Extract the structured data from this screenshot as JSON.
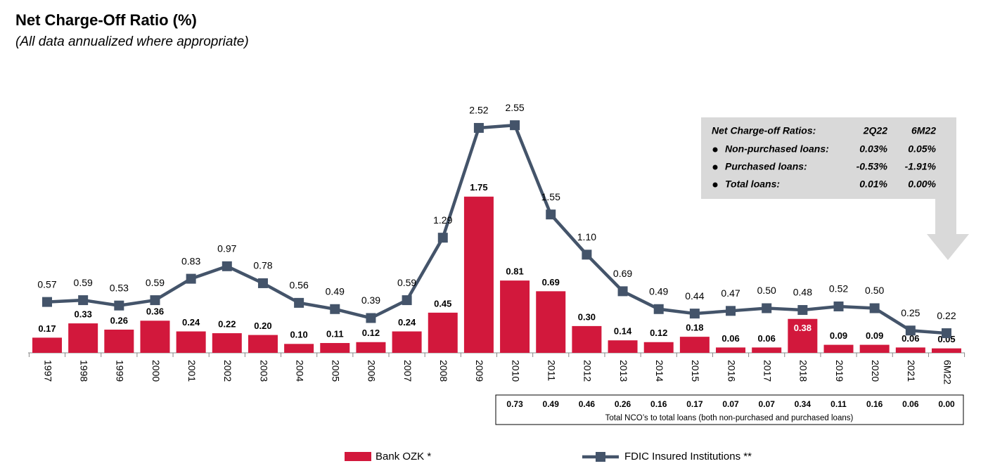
{
  "chart_data": {
    "type": "bar-line",
    "title": "Net Charge-Off Ratio (%)",
    "subtitle": "(All data annualized where appropriate)",
    "categories": [
      "1997",
      "1998",
      "1999",
      "2000",
      "2001",
      "2002",
      "2003",
      "2004",
      "2005",
      "2006",
      "2007",
      "2008",
      "2009",
      "2010",
      "2011",
      "2012",
      "2013",
      "2014",
      "2015",
      "2016",
      "2017",
      "2018",
      "2019",
      "2020",
      "2021",
      "6M22"
    ],
    "series": [
      {
        "name": "Bank OZK *",
        "type": "bar",
        "color": "#d2183c",
        "values": [
          0.17,
          0.33,
          0.26,
          0.36,
          0.24,
          0.22,
          0.2,
          0.1,
          0.11,
          0.12,
          0.24,
          0.45,
          1.75,
          0.81,
          0.69,
          0.3,
          0.14,
          0.12,
          0.18,
          0.06,
          0.06,
          0.38,
          0.09,
          0.09,
          0.06,
          0.05
        ],
        "value_labels": [
          "0.17",
          "0.33",
          "0.26",
          "0.36",
          "0.24",
          "0.22",
          "0.20",
          "0.10",
          "0.11",
          "0.12",
          "0.24",
          "0.45",
          "1.75",
          "0.81",
          "0.69",
          "0.30",
          "0.14",
          "0.12",
          "0.18",
          "0.06",
          "0.06",
          "0.38",
          "0.09",
          "0.09",
          "0.06",
          "0.05"
        ]
      },
      {
        "name": "FDIC Insured Institutions **",
        "type": "line",
        "color": "#44546a",
        "values": [
          0.57,
          0.59,
          0.53,
          0.59,
          0.83,
          0.97,
          0.78,
          0.56,
          0.49,
          0.39,
          0.59,
          1.29,
          2.52,
          2.55,
          1.55,
          1.1,
          0.69,
          0.49,
          0.44,
          0.47,
          0.5,
          0.48,
          0.52,
          0.5,
          0.25,
          0.22
        ],
        "value_labels": [
          "0.57",
          "0.59",
          "0.53",
          "0.59",
          "0.83",
          "0.97",
          "0.78",
          "0.56",
          "0.49",
          "0.39",
          "0.59",
          "1.29",
          "2.52",
          "2.55",
          "1.55",
          "1.10",
          "0.69",
          "0.49",
          "0.44",
          "0.47",
          "0.50",
          "0.48",
          "0.52",
          "0.50",
          "0.25",
          "0.22"
        ]
      }
    ],
    "total_nco_table": {
      "caption": "Total NCO’s to total loans (both non-purchased and purchased loans)",
      "cells": [
        "0.73",
        "0.49",
        "0.46",
        "0.26",
        "0.16",
        "0.17",
        "0.07",
        "0.07",
        "0.34",
        "0.11",
        "0.16",
        "0.06",
        "0.00"
      ]
    },
    "callout": {
      "header": [
        "Net Charge-off Ratios:",
        "2Q22",
        "6M22"
      ],
      "rows": [
        [
          "Non-purchased loans:",
          "0.03%",
          "0.05%"
        ],
        [
          "Purchased loans:",
          "-0.53%",
          "-1.91%"
        ],
        [
          "Total loans:",
          "0.01%",
          "0.00%"
        ]
      ]
    }
  }
}
